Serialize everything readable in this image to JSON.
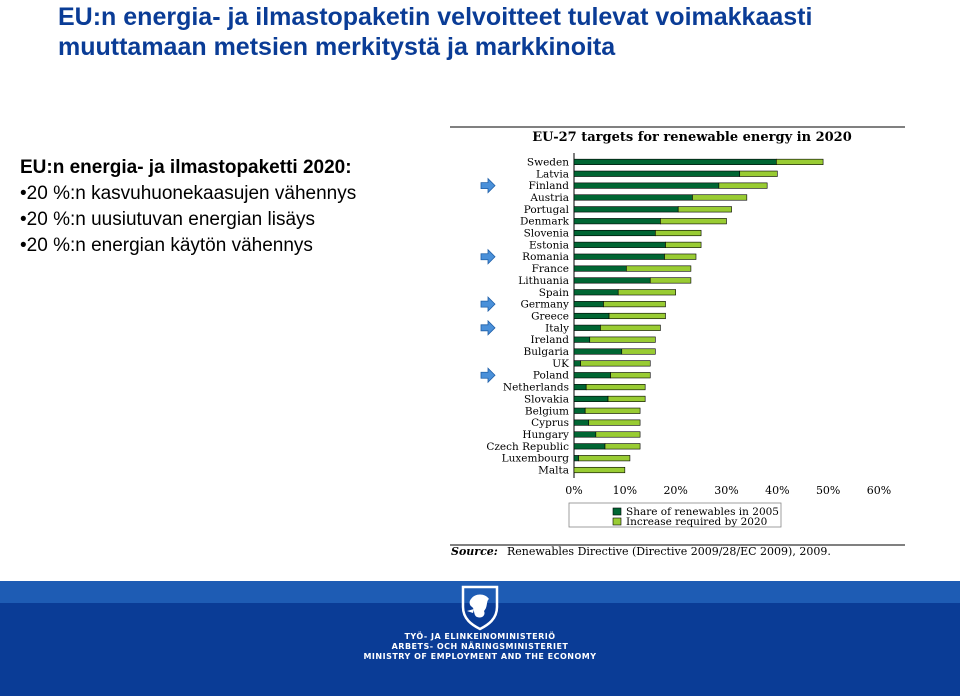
{
  "title": "EU:n energia- ja ilmastopaketin velvoitteet tulevat voimakkaasti muuttamaan metsien merkitystä ja markkinoita",
  "left": {
    "lead": "EU:n energia- ja ilmastopaketti 2020:",
    "bullets": [
      "20 %:n kasvuhuonekaasujen vähennys",
      "20 %:n uusiutuvan energian lisäys",
      "20 %:n energian käytön vähennys"
    ]
  },
  "chart_data": {
    "type": "bar",
    "orientation": "horizontal",
    "stacked": true,
    "title": "EU-27 targets for renewable energy in 2020",
    "source_label": "Source:",
    "source_text": "Renewables Directive (Directive 2009/28/EC 2009), 2009.",
    "categories": [
      "Sweden",
      "Latvia",
      "Finland",
      "Austria",
      "Portugal",
      "Denmark",
      "Slovenia",
      "Estonia",
      "Romania",
      "France",
      "Lithuania",
      "Spain",
      "Germany",
      "Greece",
      "Italy",
      "Ireland",
      "Bulgaria",
      "UK",
      "Poland",
      "Netherlands",
      "Slovakia",
      "Belgium",
      "Cyprus",
      "Hungary",
      "Czech Republic",
      "Luxembourg",
      "Malta"
    ],
    "series": [
      {
        "name": "Share of renewables in 2005",
        "color": "#006633",
        "values": [
          39.8,
          32.6,
          28.5,
          23.3,
          20.5,
          17.0,
          16.0,
          18.0,
          17.8,
          10.3,
          15.0,
          8.7,
          5.8,
          6.9,
          5.2,
          3.1,
          9.4,
          1.3,
          7.2,
          2.4,
          6.7,
          2.2,
          2.9,
          4.3,
          6.1,
          0.9,
          0.0
        ]
      },
      {
        "name": "Increase required by 2020",
        "color": "#99cc33",
        "values": [
          9.2,
          7.4,
          9.5,
          10.7,
          10.5,
          13.0,
          9.0,
          7.0,
          6.2,
          12.7,
          8.0,
          11.3,
          12.2,
          11.1,
          11.8,
          12.9,
          6.6,
          13.7,
          7.8,
          11.6,
          7.3,
          10.8,
          10.1,
          8.7,
          6.9,
          10.1,
          10.0
        ]
      }
    ],
    "xlim": [
      0,
      60
    ],
    "xticks": [
      "0%",
      "10%",
      "20%",
      "30%",
      "40%",
      "50%",
      "60%"
    ],
    "arrow_markers": [
      "Finland",
      "Romania",
      "Germany",
      "Italy",
      "Poland"
    ],
    "legend": {
      "position": "bottom"
    }
  },
  "footer": {
    "lines": [
      "TYÖ- JA ELINKEINOMINISTERIÖ",
      "ARBETS- OCH NÄRINGSMINISTERIET",
      "MINISTRY OF EMPLOYMENT AND THE ECONOMY"
    ]
  }
}
